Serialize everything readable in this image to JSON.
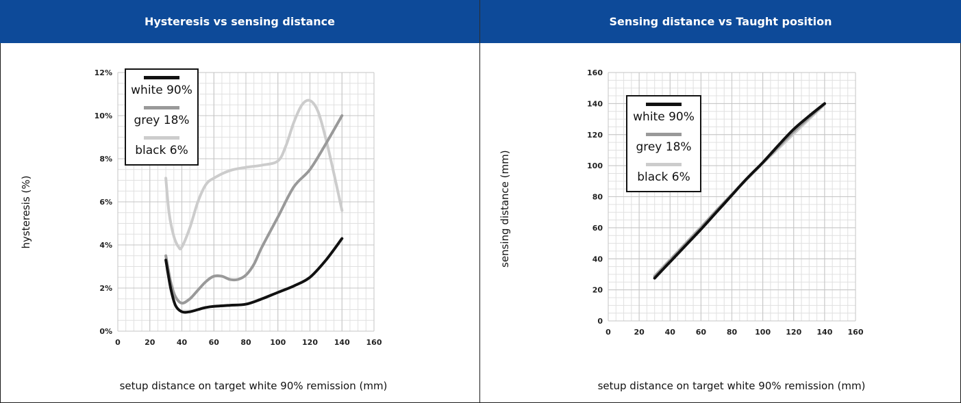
{
  "chart_data": [
    {
      "type": "line",
      "title": "Hysteresis vs sensing distance",
      "xlabel": "setup distance on target white 90% remission (mm)",
      "ylabel": "hysteresis (%)",
      "xlim": [
        0,
        160
      ],
      "ylim": [
        0,
        12
      ],
      "xticks": [
        "0",
        "20",
        "40",
        "60",
        "80",
        "100",
        "120",
        "140",
        "160"
      ],
      "yticks": [
        "0%",
        "2%",
        "4%",
        "6%",
        "8%",
        "10%",
        "12%"
      ],
      "grid": true,
      "legend_position": "top-left",
      "series": [
        {
          "name": "white 90%",
          "color": "#111111",
          "x": [
            30,
            33,
            36,
            40,
            45,
            50,
            55,
            60,
            70,
            80,
            90,
            100,
            110,
            120,
            130,
            140
          ],
          "y": [
            3.3,
            2.0,
            1.2,
            0.9,
            0.9,
            1.0,
            1.1,
            1.15,
            1.2,
            1.25,
            1.5,
            1.8,
            2.1,
            2.5,
            3.3,
            4.3
          ]
        },
        {
          "name": "grey 18%",
          "color": "#999999",
          "x": [
            30,
            33,
            36,
            40,
            45,
            50,
            55,
            60,
            65,
            70,
            75,
            80,
            85,
            90,
            100,
            110,
            120,
            130,
            140
          ],
          "y": [
            3.5,
            2.3,
            1.6,
            1.3,
            1.5,
            1.9,
            2.3,
            2.55,
            2.55,
            2.4,
            2.4,
            2.6,
            3.1,
            3.9,
            5.3,
            6.7,
            7.5,
            8.7,
            10.0
          ]
        },
        {
          "name": "black 6%",
          "color": "#cccccc",
          "x": [
            30,
            32,
            35,
            38,
            40,
            45,
            50,
            55,
            60,
            70,
            80,
            90,
            100,
            105,
            110,
            115,
            120,
            125,
            130,
            135,
            140
          ],
          "y": [
            7.1,
            5.5,
            4.4,
            3.9,
            3.9,
            4.8,
            6.0,
            6.8,
            7.1,
            7.45,
            7.6,
            7.7,
            7.9,
            8.6,
            9.7,
            10.5,
            10.7,
            10.2,
            8.9,
            7.3,
            5.6
          ]
        }
      ]
    },
    {
      "type": "line",
      "title": "Sensing distance vs Taught position",
      "xlabel": "setup distance on target white 90% remission (mm)",
      "ylabel": "sensing distance (mm)",
      "xlim": [
        0,
        160
      ],
      "ylim": [
        0,
        160
      ],
      "xticks": [
        "0",
        "20",
        "40",
        "60",
        "80",
        "100",
        "120",
        "140",
        "160"
      ],
      "yticks": [
        "0",
        "20",
        "40",
        "60",
        "80",
        "100",
        "120",
        "140",
        "160"
      ],
      "grid": true,
      "legend_position": "top-left",
      "series": [
        {
          "name": "white 90%",
          "color": "#111111",
          "x": [
            30,
            40,
            50,
            60,
            70,
            80,
            90,
            100,
            110,
            120,
            130,
            140
          ],
          "y": [
            27.5,
            38,
            48.5,
            59,
            70,
            81,
            92,
            102,
            113,
            123.5,
            132,
            140
          ]
        },
        {
          "name": "grey 18%",
          "color": "#999999",
          "x": [
            30,
            40,
            50,
            60,
            70,
            80,
            90,
            100,
            110,
            120,
            130,
            140
          ],
          "y": [
            28.5,
            39,
            49.5,
            60,
            71,
            81.5,
            92,
            102,
            112,
            122,
            131,
            140
          ]
        },
        {
          "name": "black 6%",
          "color": "#cccccc",
          "x": [
            30,
            40,
            50,
            60,
            70,
            80,
            90,
            100,
            110,
            120,
            130,
            140
          ],
          "y": [
            29,
            39.5,
            50,
            60.5,
            71,
            81.5,
            91.5,
            101.5,
            111,
            120.5,
            130,
            139.5
          ]
        }
      ]
    }
  ]
}
